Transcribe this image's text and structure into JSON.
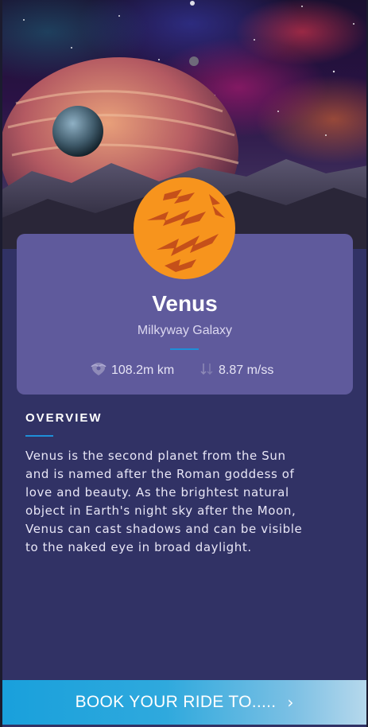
{
  "planet": {
    "name": "Venus",
    "galaxy": "Milkyway Galaxy",
    "color": "#f7941d",
    "stripe_color": "#c5501a"
  },
  "stats": {
    "distance": "108.2m km",
    "distance_icon": "location-pin-icon",
    "gravity": "8.87 m/ss",
    "gravity_icon": "arrow-down-icon"
  },
  "overview": {
    "title": "OVERVIEW",
    "lines": [
      "Venus is the second planet from the Sun",
      "and is named after the Roman goddess of",
      "love and beauty. As the brightest natural",
      "object in Earth's night sky after the Moon,",
      "Venus can cast shadows and can be visible",
      "to the naked eye in broad daylight."
    ]
  },
  "cta": {
    "label": "BOOK YOUR RIDE TO.....",
    "arrow": "›"
  },
  "colors": {
    "background": "#313265",
    "card": "#5f5a9c",
    "accent": "#1e8fd8"
  }
}
